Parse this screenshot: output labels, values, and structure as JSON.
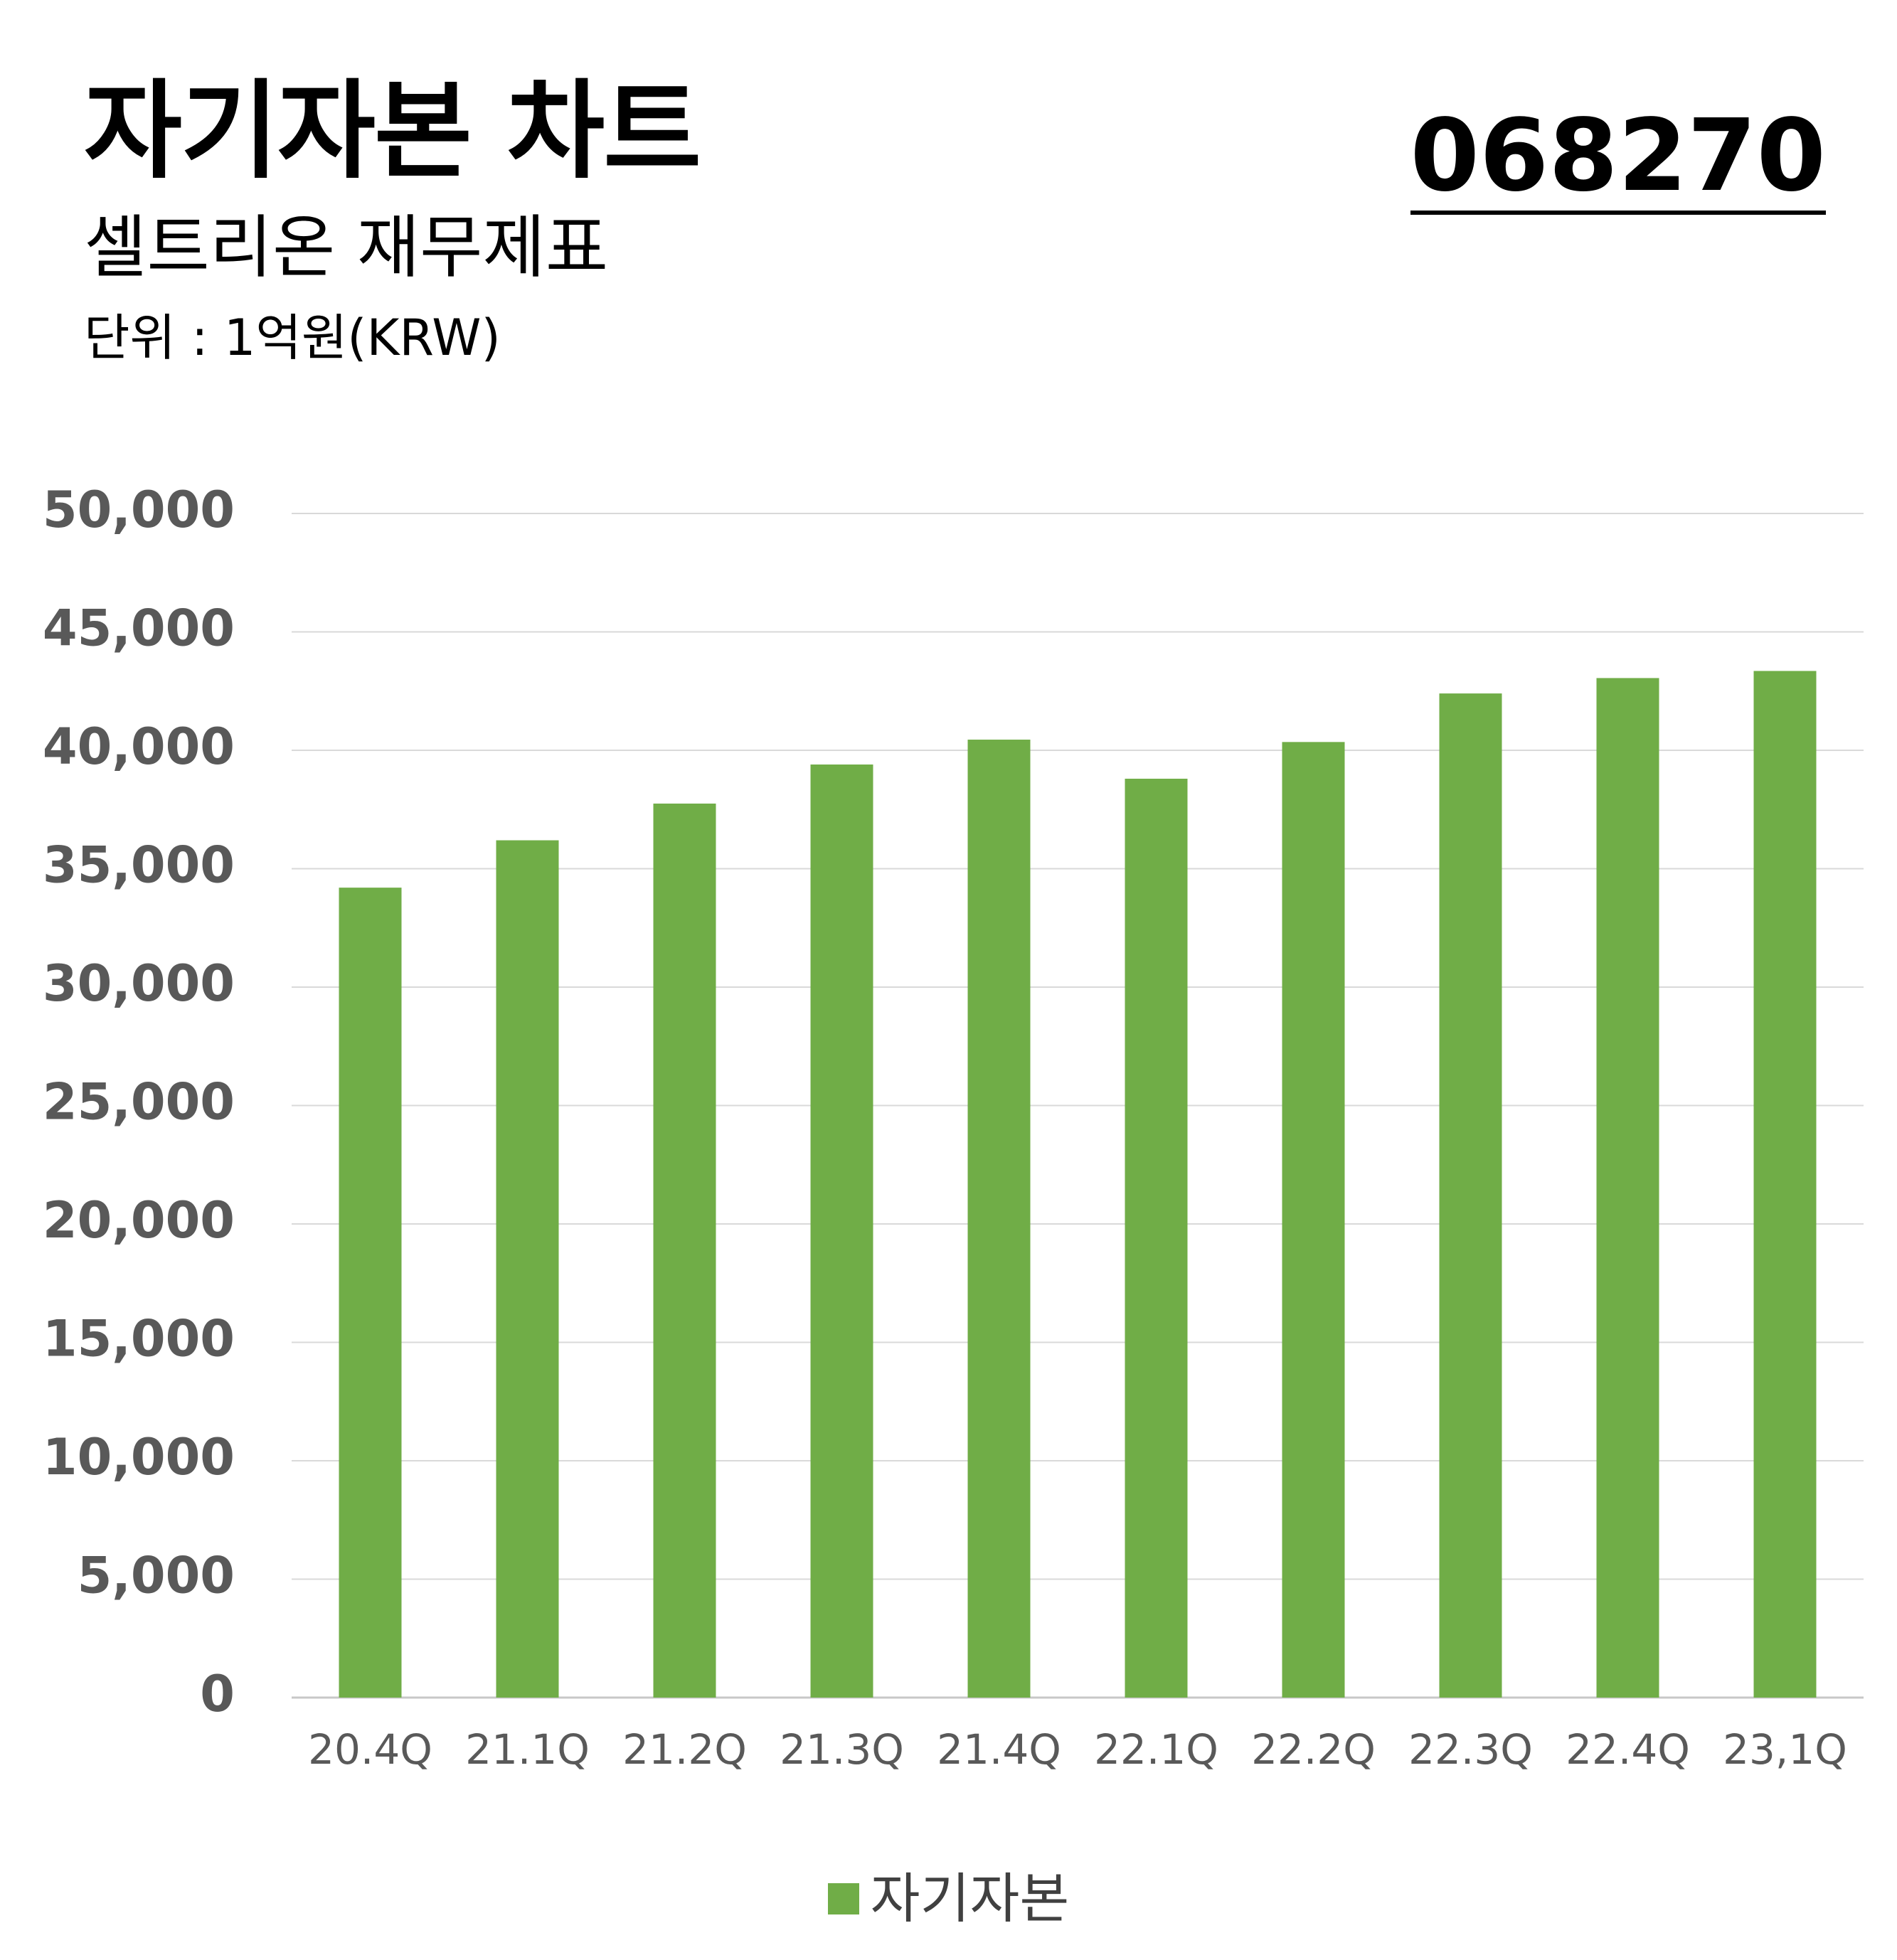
{
  "header": {
    "title": "자기자본 차트",
    "subtitle": "셀트리온 재무제표",
    "unit": "단위 : 1억원(KRW)",
    "stock_code": "068270"
  },
  "colors": {
    "bar": "#70ad47",
    "grid": "#d9d9d9",
    "y_tick": "#595959",
    "x_tick": "#595959"
  },
  "chart_data": {
    "type": "bar",
    "categories": [
      "20.4Q",
      "21.1Q",
      "21.2Q",
      "21.3Q",
      "21.4Q",
      "22.1Q",
      "22.2Q",
      "22.3Q",
      "22.4Q",
      "23,1Q"
    ],
    "series": [
      {
        "name": "자기자본",
        "values": [
          34200,
          36200,
          37750,
          39400,
          40450,
          38800,
          40350,
          42400,
          43050,
          43350
        ]
      }
    ],
    "ylim": [
      0,
      50000
    ],
    "yticks": [
      0,
      5000,
      10000,
      15000,
      20000,
      25000,
      30000,
      35000,
      40000,
      45000,
      50000
    ],
    "ytick_labels": [
      "0",
      "5,000",
      "10,000",
      "15,000",
      "20,000",
      "25,000",
      "30,000",
      "35,000",
      "40,000",
      "45,000",
      "50,000"
    ],
    "grid": true,
    "legend": "bottom"
  }
}
